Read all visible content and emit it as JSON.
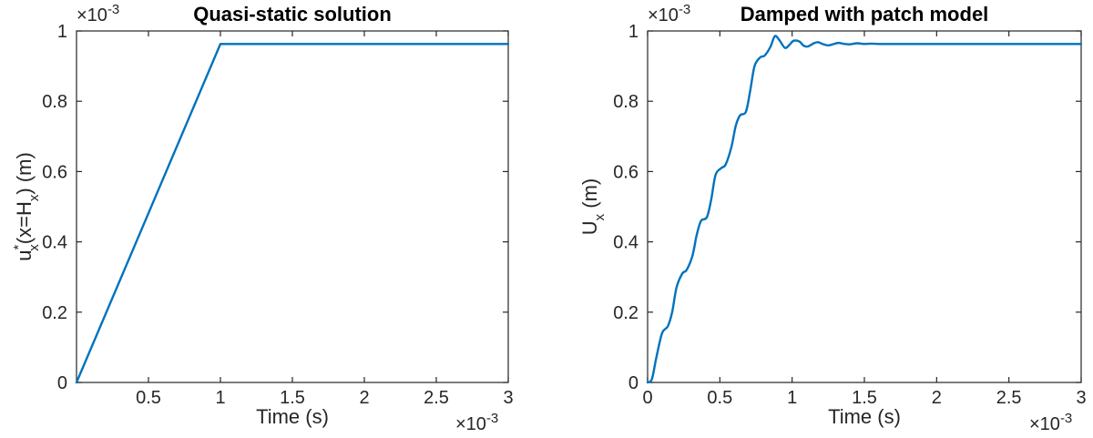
{
  "chart_data": [
    {
      "type": "line",
      "title": "Quasi-static solution",
      "xlabel": "Time (s)",
      "ylabel": {
        "main": "u",
        "sup": "*",
        "sub": "x",
        "mid": "(x=H",
        "sub2": "x",
        "end": ")  (m)"
      },
      "x_exponent": {
        "base": "×10",
        "power": "-3"
      },
      "y_exponent": {
        "base": "×10",
        "power": "-3"
      },
      "xlim": [
        0,
        3
      ],
      "ylim": [
        0,
        1
      ],
      "x_ticks": [
        0.5,
        1,
        1.5,
        2,
        2.5,
        3
      ],
      "x_tick_labels": [
        "0.5",
        "1",
        "1.5",
        "2",
        "2.5",
        "3"
      ],
      "y_ticks": [
        0,
        0.2,
        0.4,
        0.6,
        0.8,
        1
      ],
      "y_tick_labels": [
        "0",
        "0.2",
        "0.4",
        "0.6",
        "0.8",
        "1"
      ],
      "grid": false,
      "series": [
        {
          "color": "#0072BD",
          "x": [
            0,
            1,
            3
          ],
          "y": [
            0,
            0.963,
            0.963
          ]
        }
      ]
    },
    {
      "type": "line",
      "title": "Damped with patch model",
      "xlabel": "Time (s)",
      "ylabel": {
        "main": "U",
        "sub": "x",
        "end": " (m)"
      },
      "x_exponent": {
        "base": "×10",
        "power": "-3"
      },
      "y_exponent": {
        "base": "×10",
        "power": "-3"
      },
      "xlim": [
        0,
        3
      ],
      "ylim": [
        0,
        1
      ],
      "x_ticks": [
        0,
        0.5,
        1,
        1.5,
        2,
        2.5,
        3
      ],
      "x_tick_labels": [
        "0",
        "0.5",
        "1",
        "1.5",
        "2",
        "2.5",
        "3"
      ],
      "y_ticks": [
        0,
        0.2,
        0.4,
        0.6,
        0.8,
        1
      ],
      "y_tick_labels": [
        "0",
        "0.2",
        "0.4",
        "0.6",
        "0.8",
        "1"
      ],
      "grid": false,
      "series": [
        {
          "color": "#0072BD",
          "x": [
            0,
            0.03,
            0.06,
            0.1,
            0.14,
            0.17,
            0.2,
            0.24,
            0.27,
            0.31,
            0.34,
            0.37,
            0.41,
            0.44,
            0.47,
            0.51,
            0.54,
            0.58,
            0.61,
            0.64,
            0.68,
            0.71,
            0.74,
            0.78,
            0.81,
            0.85,
            0.88,
            0.91,
            0.95,
            0.98,
            1.01,
            1.05,
            1.08,
            1.11,
            1.15,
            1.18,
            1.21,
            1.25,
            1.28,
            1.32,
            1.35,
            1.4,
            1.45,
            1.5,
            1.55,
            1.6,
            1.7,
            1.8,
            2.0,
            2.5,
            3.0
          ],
          "y": [
            0,
            0.01,
            0.07,
            0.14,
            0.16,
            0.2,
            0.27,
            0.31,
            0.32,
            0.36,
            0.42,
            0.46,
            0.47,
            0.52,
            0.59,
            0.61,
            0.62,
            0.67,
            0.73,
            0.76,
            0.77,
            0.83,
            0.9,
            0.925,
            0.93,
            0.955,
            0.985,
            0.975,
            0.952,
            0.96,
            0.972,
            0.97,
            0.958,
            0.956,
            0.965,
            0.968,
            0.963,
            0.959,
            0.962,
            0.966,
            0.964,
            0.962,
            0.965,
            0.963,
            0.964,
            0.963,
            0.963,
            0.963,
            0.963,
            0.963,
            0.963
          ]
        }
      ]
    }
  ]
}
